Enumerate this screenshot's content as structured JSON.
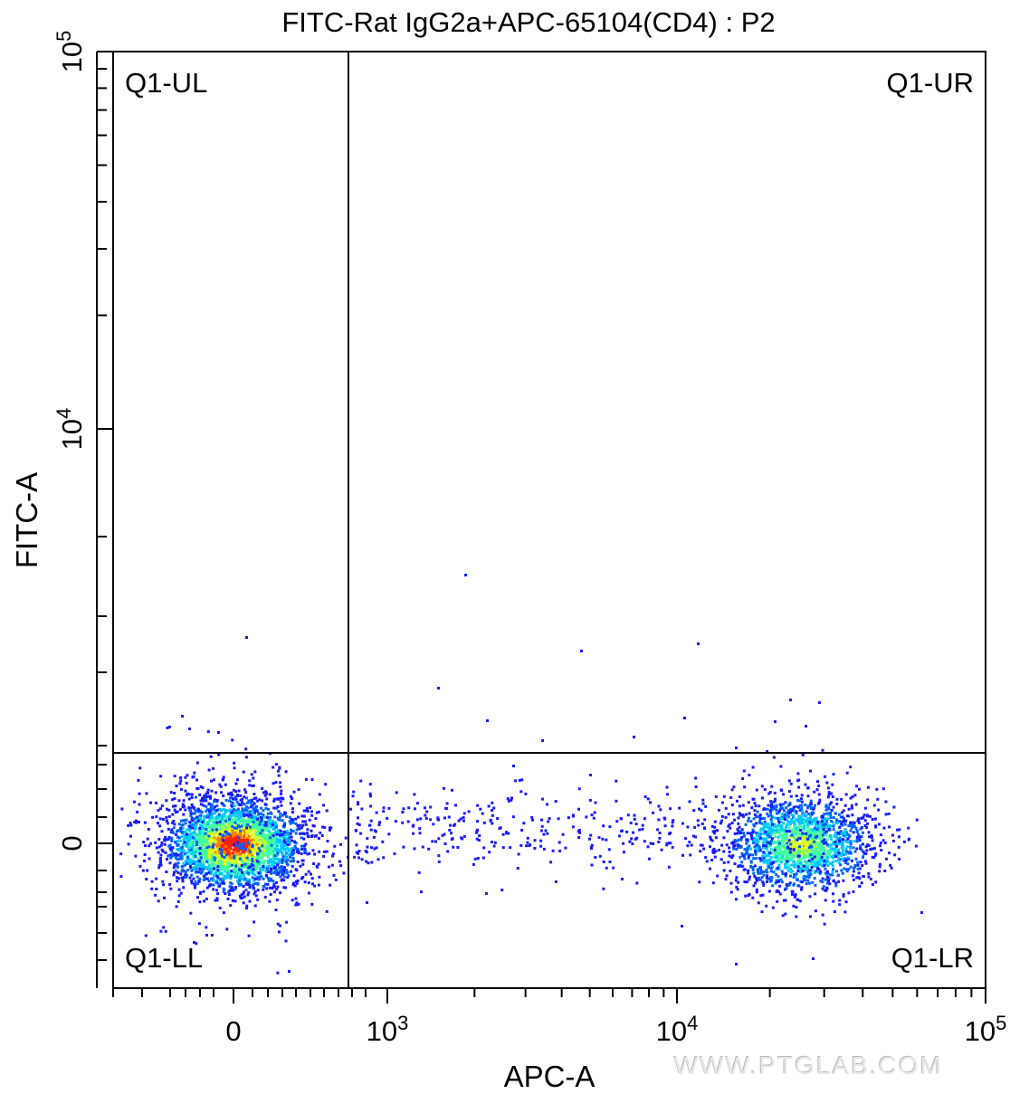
{
  "chart_data": {
    "type": "scatter",
    "title": "FITC-Rat IgG2a+APC-65104(CD4) : P2",
    "xlabel": "APC-A",
    "ylabel": "FITC-A",
    "x_scale": "biexponential",
    "y_scale": "biexponential",
    "xlim": [
      -600,
      100000
    ],
    "ylim": [
      -600,
      100000
    ],
    "x_ticks": [
      {
        "label": "0",
        "value": 0
      },
      {
        "label": "10",
        "sup": "3",
        "value": 1000
      },
      {
        "label": "10",
        "sup": "4",
        "value": 10000
      },
      {
        "label": "10",
        "sup": "5",
        "value": 100000
      }
    ],
    "y_ticks": [
      {
        "label": "0",
        "value": 0
      },
      {
        "label": "10",
        "sup": "4",
        "value": 10000
      },
      {
        "label": "10",
        "sup": "5",
        "value": 100000
      }
    ],
    "gates": {
      "x_threshold": 750,
      "y_threshold": 2000
    },
    "quadrants": [
      {
        "label": "Q1-UL",
        "position": "top-left"
      },
      {
        "label": "Q1-UR",
        "position": "top-right"
      },
      {
        "label": "Q1-LL",
        "position": "bottom-left"
      },
      {
        "label": "Q1-LR",
        "position": "bottom-right"
      }
    ],
    "populations": [
      {
        "name": "",
        "x_center": 0,
        "y_center": 0,
        "relative_size": "large",
        "dense_core": true
      },
      {
        "name": "",
        "x_center": 25000,
        "y_center": 0,
        "relative_size": "medium",
        "dense_core": false
      }
    ],
    "density_colors": [
      "#1a1aff",
      "#0060ff",
      "#00c8ff",
      "#40ffa0",
      "#d8ff20",
      "#ff8000",
      "#ff2000"
    ],
    "grid": false,
    "legend": "none"
  },
  "watermark": "WWW.PTGLAB.COM"
}
